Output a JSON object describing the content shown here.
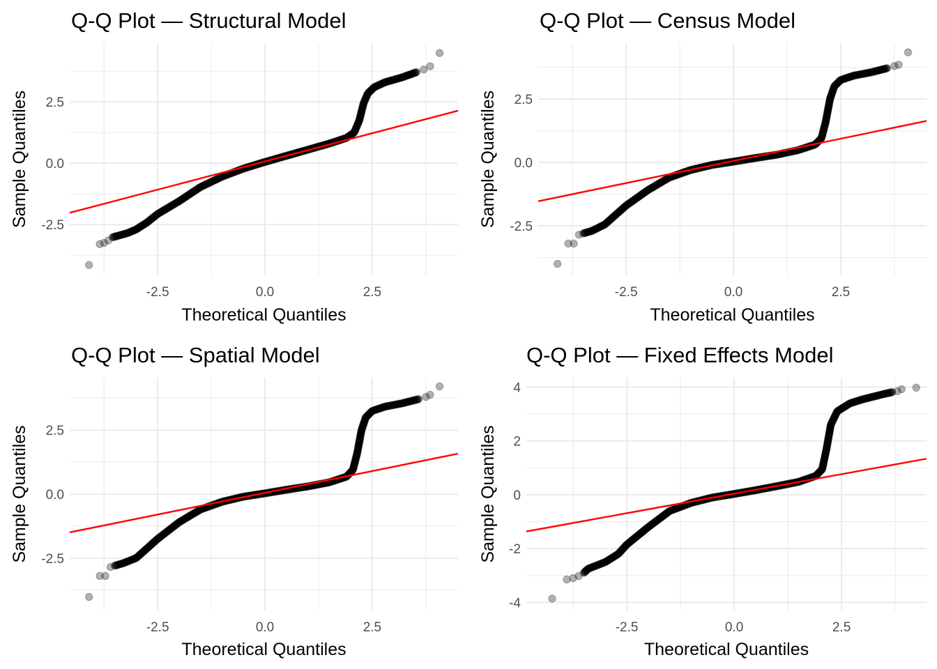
{
  "chart_data": [
    {
      "type": "scatter",
      "title": "Q-Q Plot — Structural Model",
      "xlabel": "Theoretical Quantiles",
      "ylabel": "Sample Quantiles",
      "xlim": [
        -4.55,
        4.5
      ],
      "ylim": [
        -4.57,
        4.89
      ],
      "xticks": [
        -2.5,
        0,
        2.5
      ],
      "xtick_labels": [
        "-2.5",
        "0.0",
        "2.5"
      ],
      "yticks": [
        -2.5,
        0,
        2.5
      ],
      "ytick_labels": [
        "-2.5",
        "0.0",
        "2.5"
      ],
      "grid": true,
      "reference_line": {
        "intercept": 0.07,
        "slope": 0.46,
        "color": "#ff0000"
      },
      "point_color": "#000000",
      "outliers": [
        [
          -4.1,
          -4.15
        ],
        [
          -3.85,
          -3.3
        ],
        [
          -3.75,
          -3.25
        ],
        [
          -3.65,
          -3.15
        ],
        [
          3.7,
          3.82
        ],
        [
          3.85,
          3.95
        ],
        [
          4.07,
          4.49
        ]
      ],
      "curve": [
        [
          -3.55,
          -3.02
        ],
        [
          -3.2,
          -2.85
        ],
        [
          -3.0,
          -2.7
        ],
        [
          -2.75,
          -2.42
        ],
        [
          -2.5,
          -2.07
        ],
        [
          -2.0,
          -1.55
        ],
        [
          -1.5,
          -0.97
        ],
        [
          -1.0,
          -0.55
        ],
        [
          -0.5,
          -0.22
        ],
        [
          0,
          0.05
        ],
        [
          0.5,
          0.3
        ],
        [
          1.0,
          0.55
        ],
        [
          1.5,
          0.8
        ],
        [
          1.9,
          1.03
        ],
        [
          2.08,
          1.25
        ],
        [
          2.2,
          1.75
        ],
        [
          2.3,
          2.45
        ],
        [
          2.4,
          2.85
        ],
        [
          2.55,
          3.1
        ],
        [
          2.8,
          3.3
        ],
        [
          3.2,
          3.5
        ],
        [
          3.55,
          3.72
        ]
      ]
    },
    {
      "type": "scatter",
      "title": "Q-Q Plot — Census Model",
      "xlabel": "Theoretical Quantiles",
      "ylabel": "Sample Quantiles",
      "xlim": [
        -4.55,
        4.5
      ],
      "ylim": [
        -4.45,
        4.7
      ],
      "xticks": [
        -2.5,
        0,
        2.5
      ],
      "xtick_labels": [
        "-2.5",
        "0.0",
        "2.5"
      ],
      "yticks": [
        -2.5,
        0,
        2.5
      ],
      "ytick_labels": [
        "-2.5",
        "0.0",
        "2.5"
      ],
      "grid": true,
      "reference_line": {
        "intercept": 0.06,
        "slope": 0.35,
        "color": "#ff0000"
      },
      "point_color": "#000000",
      "outliers": [
        [
          -4.1,
          -4.0
        ],
        [
          -3.85,
          -3.2
        ],
        [
          -3.72,
          -3.2
        ],
        [
          -3.6,
          -2.85
        ],
        [
          3.75,
          3.8
        ],
        [
          3.85,
          3.85
        ],
        [
          4.07,
          4.34
        ]
      ],
      "curve": [
        [
          -3.5,
          -2.8
        ],
        [
          -3.3,
          -2.7
        ],
        [
          -3.0,
          -2.45
        ],
        [
          -2.5,
          -1.7
        ],
        [
          -2.0,
          -1.1
        ],
        [
          -1.5,
          -0.6
        ],
        [
          -1.0,
          -0.3
        ],
        [
          -0.5,
          -0.1
        ],
        [
          0,
          0.03
        ],
        [
          0.5,
          0.17
        ],
        [
          1.0,
          0.3
        ],
        [
          1.5,
          0.48
        ],
        [
          1.9,
          0.7
        ],
        [
          2.05,
          0.95
        ],
        [
          2.15,
          1.6
        ],
        [
          2.25,
          2.5
        ],
        [
          2.35,
          3.0
        ],
        [
          2.5,
          3.25
        ],
        [
          2.8,
          3.42
        ],
        [
          3.2,
          3.55
        ],
        [
          3.6,
          3.72
        ]
      ]
    },
    {
      "type": "scatter",
      "title": "Q-Q Plot — Spatial Model",
      "xlabel": "Theoretical Quantiles",
      "ylabel": "Sample Quantiles",
      "xlim": [
        -4.55,
        4.5
      ],
      "ylim": [
        -4.55,
        4.55
      ],
      "xticks": [
        -2.5,
        0,
        2.5
      ],
      "xtick_labels": [
        "-2.5",
        "0.0",
        "2.5"
      ],
      "yticks": [
        -2.5,
        0,
        2.5
      ],
      "ytick_labels": [
        "-2.5",
        "0.0",
        "2.5"
      ],
      "grid": true,
      "reference_line": {
        "intercept": 0.05,
        "slope": 0.34,
        "color": "#ff0000"
      },
      "point_color": "#000000",
      "outliers": [
        [
          -4.1,
          -4.02
        ],
        [
          -3.85,
          -3.2
        ],
        [
          -3.72,
          -3.2
        ],
        [
          -3.6,
          -2.85
        ],
        [
          3.75,
          3.8
        ],
        [
          3.85,
          3.88
        ],
        [
          4.07,
          4.21
        ]
      ],
      "curve": [
        [
          -3.5,
          -2.8
        ],
        [
          -3.3,
          -2.7
        ],
        [
          -3.0,
          -2.5
        ],
        [
          -2.5,
          -1.75
        ],
        [
          -2.0,
          -1.1
        ],
        [
          -1.5,
          -0.6
        ],
        [
          -1.0,
          -0.3
        ],
        [
          -0.5,
          -0.1
        ],
        [
          0,
          0.03
        ],
        [
          0.5,
          0.17
        ],
        [
          1.0,
          0.3
        ],
        [
          1.5,
          0.46
        ],
        [
          1.9,
          0.68
        ],
        [
          2.05,
          0.95
        ],
        [
          2.15,
          1.6
        ],
        [
          2.25,
          2.5
        ],
        [
          2.35,
          3.0
        ],
        [
          2.5,
          3.25
        ],
        [
          2.8,
          3.42
        ],
        [
          3.2,
          3.55
        ],
        [
          3.6,
          3.72
        ]
      ]
    },
    {
      "type": "scatter",
      "title": "Q-Q Plot — Fixed Effects Model",
      "xlabel": "Theoretical Quantiles",
      "ylabel": "Sample Quantiles",
      "xlim": [
        -4.84,
        4.48
      ],
      "ylim": [
        -4.3,
        4.35
      ],
      "xticks": [
        -2.5,
        0,
        2.5
      ],
      "xtick_labels": [
        "-2.5",
        "0.0",
        "2.5"
      ],
      "yticks": [
        -4,
        -2,
        0,
        2,
        4
      ],
      "ytick_labels": [
        "-4",
        "-2",
        "0",
        "2",
        "4"
      ],
      "grid": true,
      "reference_line": {
        "intercept": 0.04,
        "slope": 0.29,
        "color": "#ff0000"
      },
      "point_color": "#000000",
      "outliers": [
        [
          -4.24,
          -3.86
        ],
        [
          -3.9,
          -3.15
        ],
        [
          -3.75,
          -3.1
        ],
        [
          -3.62,
          -3.02
        ],
        [
          3.8,
          3.85
        ],
        [
          3.9,
          3.92
        ],
        [
          4.24,
          3.98
        ]
      ],
      "curve": [
        [
          -3.5,
          -2.9
        ],
        [
          -3.4,
          -2.75
        ],
        [
          -3.0,
          -2.5
        ],
        [
          -2.7,
          -2.2
        ],
        [
          -2.5,
          -1.85
        ],
        [
          -2.0,
          -1.2
        ],
        [
          -1.5,
          -0.6
        ],
        [
          -1.0,
          -0.3
        ],
        [
          -0.5,
          -0.1
        ],
        [
          0,
          0.03
        ],
        [
          0.5,
          0.17
        ],
        [
          1.0,
          0.32
        ],
        [
          1.5,
          0.48
        ],
        [
          1.9,
          0.7
        ],
        [
          2.05,
          0.95
        ],
        [
          2.15,
          1.7
        ],
        [
          2.25,
          2.6
        ],
        [
          2.4,
          3.1
        ],
        [
          2.7,
          3.4
        ],
        [
          3.0,
          3.55
        ],
        [
          3.5,
          3.75
        ],
        [
          3.7,
          3.82
        ]
      ]
    }
  ]
}
